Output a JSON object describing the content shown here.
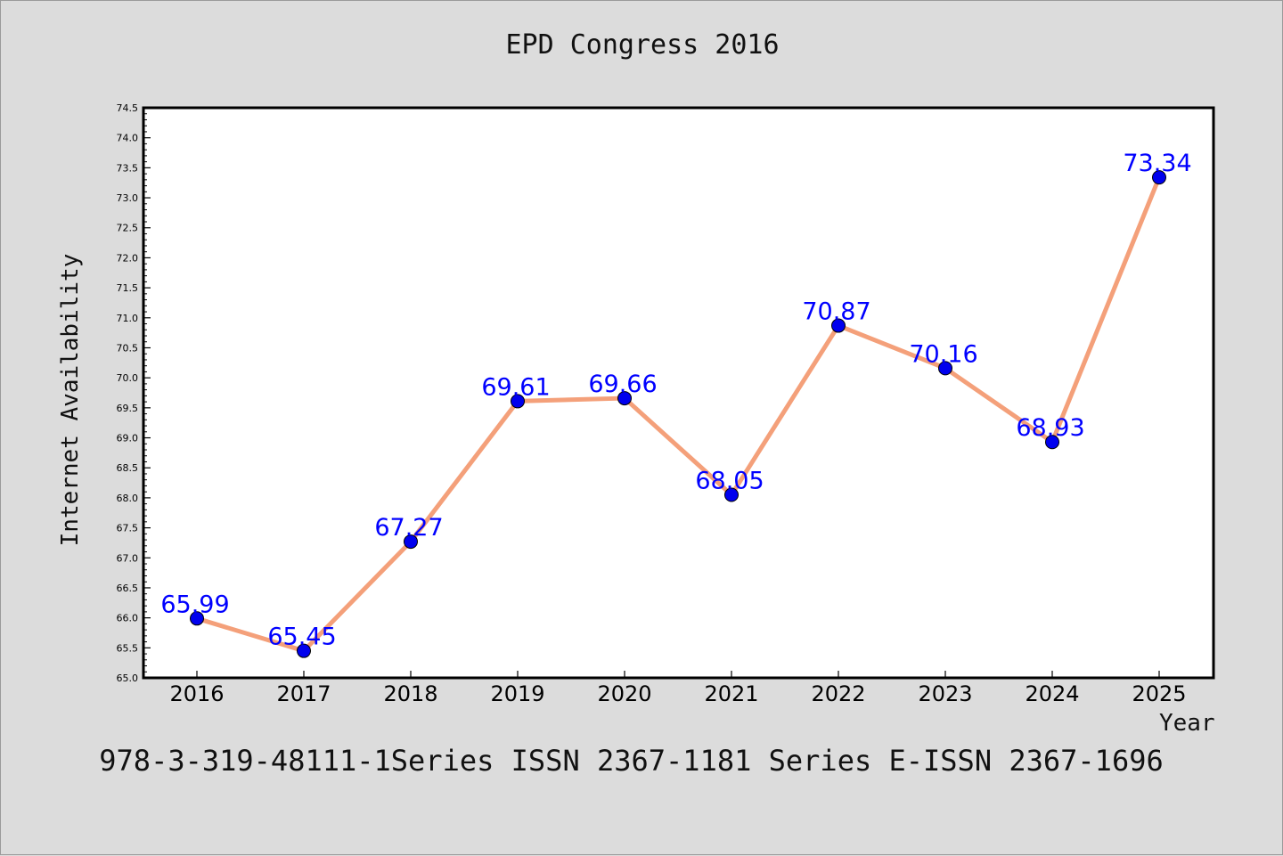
{
  "chart_data": {
    "type": "line",
    "title": "EPD Congress 2016",
    "xlabel": "Year",
    "ylabel": "Internet Availability",
    "categories": [
      "2016",
      "2017",
      "2018",
      "2019",
      "2020",
      "2021",
      "2022",
      "2023",
      "2024",
      "2025"
    ],
    "series": [
      {
        "values": [
          65.99,
          65.45,
          67.27,
          69.61,
          69.66,
          68.05,
          70.87,
          70.16,
          68.93,
          73.34
        ]
      }
    ],
    "data_labels": [
      "65.99",
      "65.45",
      "67.27",
      "69.61",
      "69.66",
      "68.05",
      "70.87",
      "70.16",
      "68.93",
      "73.34"
    ],
    "ylim": [
      65.0,
      74.5
    ],
    "yticks": [
      "65.0",
      "65.5",
      "66.0",
      "66.5",
      "67.0",
      "67.5",
      "68.0",
      "68.5",
      "69.0",
      "69.5",
      "70.0",
      "70.5",
      "71.0",
      "71.5",
      "72.0",
      "72.5",
      "73.0",
      "73.5",
      "74.0",
      "74.5"
    ],
    "grid": false,
    "line_color": "#f4a07a",
    "marker_color": "#0000ee",
    "label_color": "#0000ff"
  },
  "caption": "978-3-319-48111-1Series ISSN 2367-1181 Series E-ISSN 2367-1696"
}
